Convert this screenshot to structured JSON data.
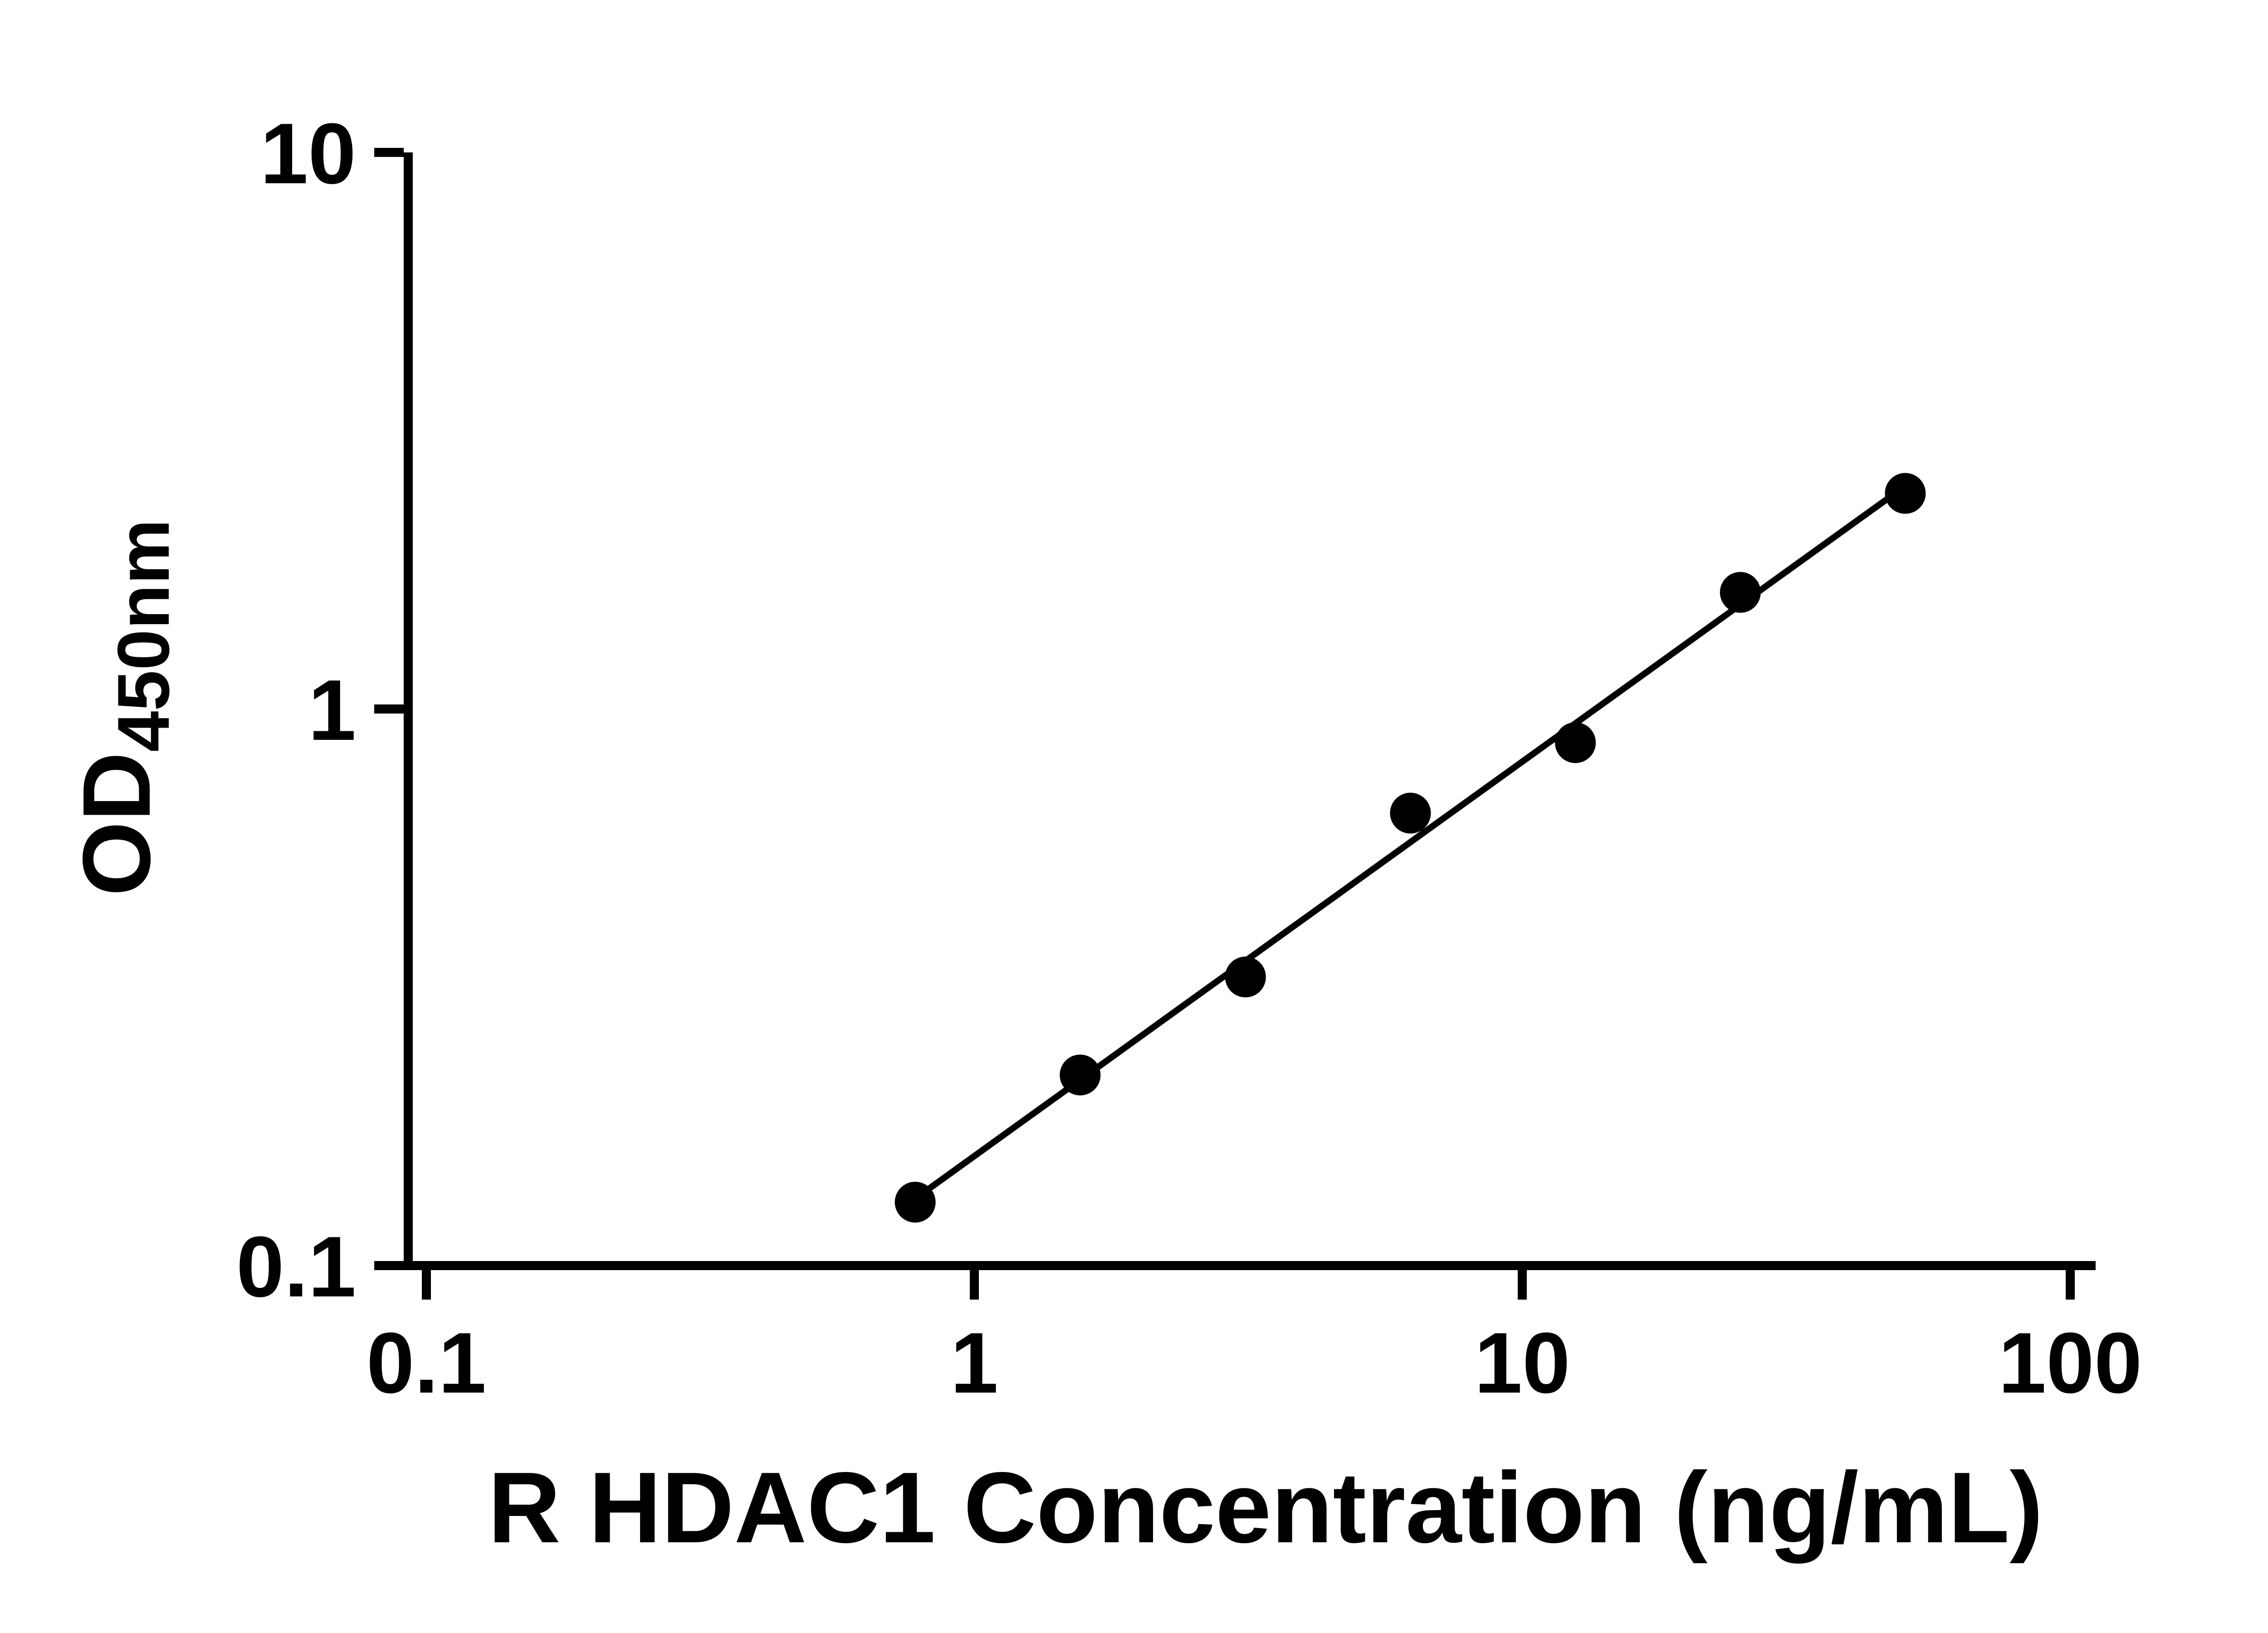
{
  "chart_data": {
    "type": "scatter",
    "title": "",
    "xlabel": "R HDAC1 Concentration (ng/mL)",
    "ylabel_main": "OD",
    "ylabel_sub": "450nm",
    "x_scale": "log",
    "y_scale": "log",
    "xlim": [
      0.1,
      100
    ],
    "ylim": [
      0.1,
      10
    ],
    "x_ticks": [
      0.1,
      1,
      10,
      100
    ],
    "x_tick_labels": [
      "0.1",
      "1",
      "10",
      "100"
    ],
    "y_ticks": [
      0.1,
      1,
      10
    ],
    "y_tick_labels": [
      "0.1",
      "1",
      "10"
    ],
    "grid": "off",
    "legend": "none",
    "points": [
      {
        "x": 0.78,
        "y": 0.13
      },
      {
        "x": 1.56,
        "y": 0.22
      },
      {
        "x": 3.125,
        "y": 0.33
      },
      {
        "x": 6.25,
        "y": 0.65
      },
      {
        "x": 12.5,
        "y": 0.87
      },
      {
        "x": 25,
        "y": 1.62
      },
      {
        "x": 50,
        "y": 2.44
      }
    ],
    "trendline": {
      "type": "linear_loglog_fit",
      "through_x_range": [
        0.78,
        50
      ]
    },
    "colors": {
      "background": "#ffffff",
      "axis": "#000000",
      "points": "#000000",
      "line": "#000000",
      "text": "#000000"
    }
  }
}
